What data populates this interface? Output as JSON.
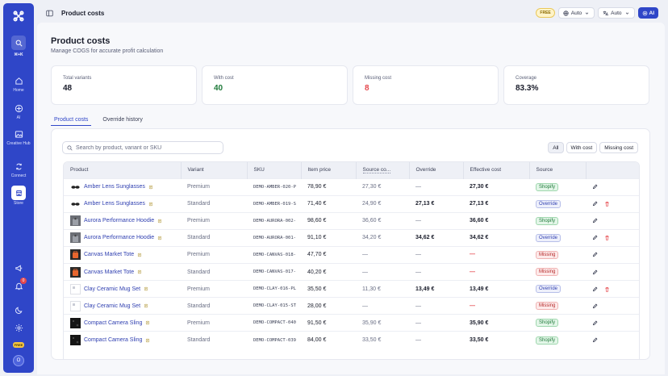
{
  "sidebar": {
    "shortcut": "⌘+K",
    "items": [
      {
        "label": "Home"
      },
      {
        "label": "AI"
      },
      {
        "label": "Creative Hub"
      },
      {
        "label": "Connect"
      },
      {
        "label": "Store"
      }
    ],
    "notification_count": "0",
    "plan_badge": "FREE",
    "avatar_initial": "O"
  },
  "header": {
    "title": "Product costs",
    "plan_pill": "FREE",
    "select1": "Auto",
    "select2": "Auto",
    "ai_label": "AI"
  },
  "page": {
    "title": "Product costs",
    "subtitle": "Manage COGS for accurate profit calculation"
  },
  "stats": [
    {
      "label": "Total variants",
      "value": "48"
    },
    {
      "label": "With cost",
      "value": "40"
    },
    {
      "label": "Missing cost",
      "value": "8"
    },
    {
      "label": "Coverage",
      "value": "83.3%"
    }
  ],
  "tabs": [
    "Product costs",
    "Override history"
  ],
  "search": {
    "placeholder": "Search by product, variant or SKU"
  },
  "filters": [
    "All",
    "With cost",
    "Missing cost"
  ],
  "table": {
    "columns": [
      "Product",
      "Variant",
      "SKU",
      "Item price",
      "Source co...",
      "Override",
      "Effective cost",
      "Source",
      ""
    ],
    "rows": [
      {
        "product": "Amber Lens Sunglasses",
        "variant": "Premium",
        "sku": "DEMO-AMBER-020-P",
        "price": "78,90 €",
        "source_cost": "27,30 €",
        "override": "—",
        "effective": "27,30 €",
        "source": "Shopify"
      },
      {
        "product": "Amber Lens Sunglasses",
        "variant": "Standard",
        "sku": "DEMO-AMBER-019-S",
        "price": "71,40 €",
        "source_cost": "24,90 €",
        "override": "27,13 €",
        "effective": "27,13 €",
        "source": "Override"
      },
      {
        "product": "Aurora Performance Hoodie",
        "variant": "Premium",
        "sku": "DEMO-AURORA-002-",
        "price": "98,60 €",
        "source_cost": "36,60 €",
        "override": "—",
        "effective": "36,60 €",
        "source": "Shopify"
      },
      {
        "product": "Aurora Performance Hoodie",
        "variant": "Standard",
        "sku": "DEMO-AURORA-001-",
        "price": "91,10 €",
        "source_cost": "34,20 €",
        "override": "34,62 €",
        "effective": "34,62 €",
        "source": "Override"
      },
      {
        "product": "Canvas Market Tote",
        "variant": "Premium",
        "sku": "DEMO-CANVAS-018-",
        "price": "47,70 €",
        "source_cost": "—",
        "override": "—",
        "effective": "—",
        "source": "Missing"
      },
      {
        "product": "Canvas Market Tote",
        "variant": "Standard",
        "sku": "DEMO-CANVAS-017-",
        "price": "40,20 €",
        "source_cost": "—",
        "override": "—",
        "effective": "—",
        "source": "Missing"
      },
      {
        "product": "Clay Ceramic Mug Set",
        "variant": "Premium",
        "sku": "DEMO-CLAY-016-PL",
        "price": "35,50 €",
        "source_cost": "11,30 €",
        "override": "13,49 €",
        "effective": "13,49 €",
        "source": "Override"
      },
      {
        "product": "Clay Ceramic Mug Set",
        "variant": "Standard",
        "sku": "DEMO-CLAY-015-ST",
        "price": "28,00 €",
        "source_cost": "—",
        "override": "—",
        "effective": "—",
        "source": "Missing"
      },
      {
        "product": "Compact Camera Sling",
        "variant": "Premium",
        "sku": "DEMO-COMPACT-040",
        "price": "91,50 €",
        "source_cost": "35,90 €",
        "override": "—",
        "effective": "35,90 €",
        "source": "Shopify"
      },
      {
        "product": "Compact Camera Sling",
        "variant": "Standard",
        "sku": "DEMO-COMPACT-039",
        "price": "84,00 €",
        "source_cost": "33,50 €",
        "override": "—",
        "effective": "33,50 €",
        "source": "Shopify"
      }
    ]
  },
  "colors": {
    "accent": "#2f46c8",
    "success": "#1f7a3a",
    "danger": "#e5484d"
  }
}
